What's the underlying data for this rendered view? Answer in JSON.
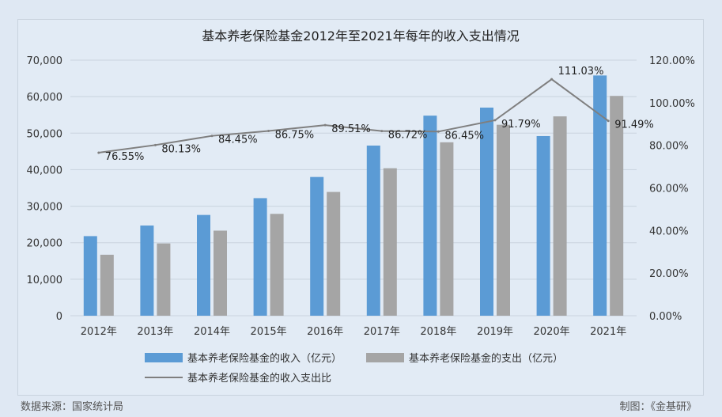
{
  "source_label": "数据来源：国家统计局",
  "credit_label": "制图：《金基研》",
  "colors": {
    "income": "#5b9bd5",
    "expense": "#a5a5a5",
    "ratio": "#7f7f7f",
    "grid": "#c9d3de",
    "text": "#333333"
  },
  "chart_data": {
    "type": "bar",
    "title": "基本养老保险基金2012年至2021年每年的收入支出情况",
    "categories": [
      "2012年",
      "2013年",
      "2014年",
      "2015年",
      "2016年",
      "2017年",
      "2018年",
      "2019年",
      "2020年",
      "2021年"
    ],
    "series": [
      {
        "name": "基本养老保险基金的收入（亿元）",
        "kind": "bar",
        "axis": "left",
        "values": [
          21800,
          24700,
          27600,
          32200,
          38000,
          46600,
          54800,
          57000,
          49200,
          65800
        ]
      },
      {
        "name": "基本养老保险基金的支出（亿元）",
        "kind": "bar",
        "axis": "left",
        "values": [
          16700,
          19800,
          23300,
          27900,
          33900,
          40400,
          47500,
          52300,
          54600,
          60200
        ]
      },
      {
        "name": "基本养老保险基金的收入支出比",
        "kind": "line",
        "axis": "right",
        "values": [
          76.55,
          80.13,
          84.45,
          86.75,
          89.51,
          86.72,
          86.45,
          91.79,
          111.03,
          91.49
        ],
        "labels": [
          "76.55%",
          "80.13%",
          "84.45%",
          "86.75%",
          "89.51%",
          "86.72%",
          "86.45%",
          "91.79%",
          "111.03%",
          "91.49%"
        ]
      }
    ],
    "y_left": {
      "min": 0,
      "max": 70000,
      "ticks": [
        "0",
        "10,000",
        "20,000",
        "30,000",
        "40,000",
        "50,000",
        "60,000",
        "70,000"
      ]
    },
    "y_right": {
      "min": 0,
      "max": 120,
      "ticks": [
        "0.00%",
        "20.00%",
        "40.00%",
        "60.00%",
        "80.00%",
        "100.00%",
        "120.00%"
      ]
    },
    "grid": true,
    "legend_position": "bottom"
  }
}
